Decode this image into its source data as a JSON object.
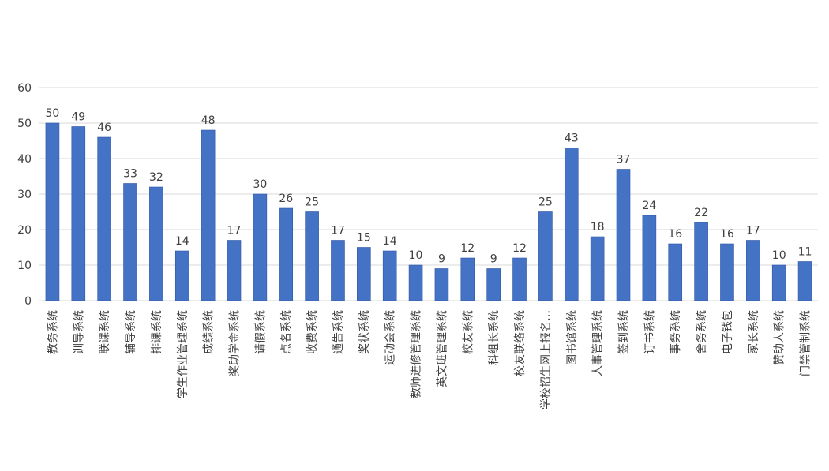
{
  "chart_data": {
    "type": "bar",
    "title": "",
    "xlabel": "",
    "ylabel": "",
    "ylim": [
      0,
      60
    ],
    "yticks": [
      0,
      10,
      20,
      30,
      40,
      50,
      60
    ],
    "grid": true,
    "legend": "none",
    "data_labels": true,
    "categories": [
      "教务系统",
      "训导系统",
      "联课系统",
      "辅导系统",
      "排课系统",
      "学生作业管理系统",
      "成绩系统",
      "奖助学金系统",
      "请假系统",
      "点名系统",
      "收费系统",
      "通告系统",
      "奖状系统",
      "运动会系统",
      "教师进修管理系统",
      "英文班管理系统",
      "校友系统",
      "科组长系统",
      "校友联络系统",
      "学校招生网上报名…",
      "图书馆系统",
      "人事管理系统",
      "签到系统",
      "订书系统",
      "事务系统",
      "舍务系统",
      "电子钱包",
      "家长系统",
      "赞助人系统",
      "门禁管制系统"
    ],
    "values": [
      50,
      49,
      46,
      33,
      32,
      14,
      48,
      17,
      30,
      26,
      25,
      17,
      15,
      14,
      10,
      9,
      12,
      9,
      12,
      25,
      43,
      18,
      37,
      24,
      16,
      22,
      16,
      17,
      10,
      11
    ],
    "colors": {
      "bar": "#4472C4",
      "bar_dark": "#2F56A8",
      "grid": "#D9D9D9",
      "text": "#404040"
    }
  }
}
